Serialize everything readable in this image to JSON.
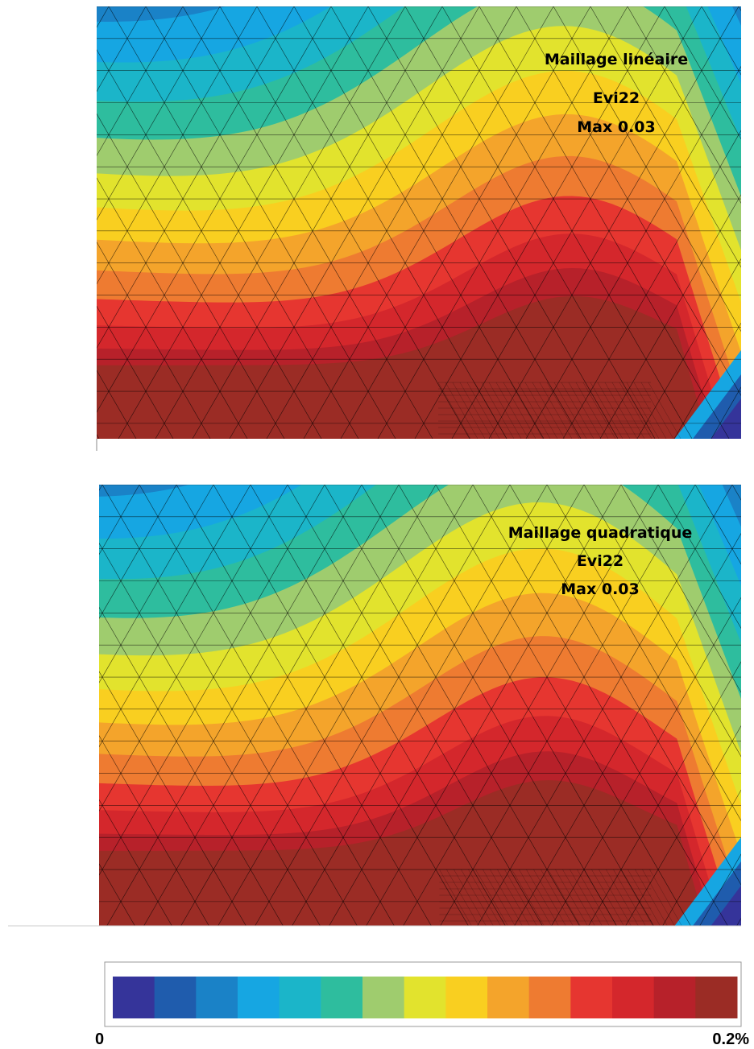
{
  "panels": [
    {
      "lines": [
        "Maillage linéaire",
        "Evi22",
        "Max 0.03"
      ]
    },
    {
      "lines": [
        "Maillage quadratique",
        "Evi22",
        "Max 0.03"
      ]
    }
  ],
  "colorbar": {
    "colors": [
      "#35349a",
      "#1f5cad",
      "#1a82c7",
      "#16a6e2",
      "#1bb5c9",
      "#2ebd9e",
      "#9fcc6e",
      "#e2e32d",
      "#f9cf20",
      "#f4a42b",
      "#ee7b31",
      "#e63630",
      "#d4272c",
      "#b7212a",
      "#9b2c25"
    ],
    "min_label": "0",
    "max_label": "0.2%"
  }
}
